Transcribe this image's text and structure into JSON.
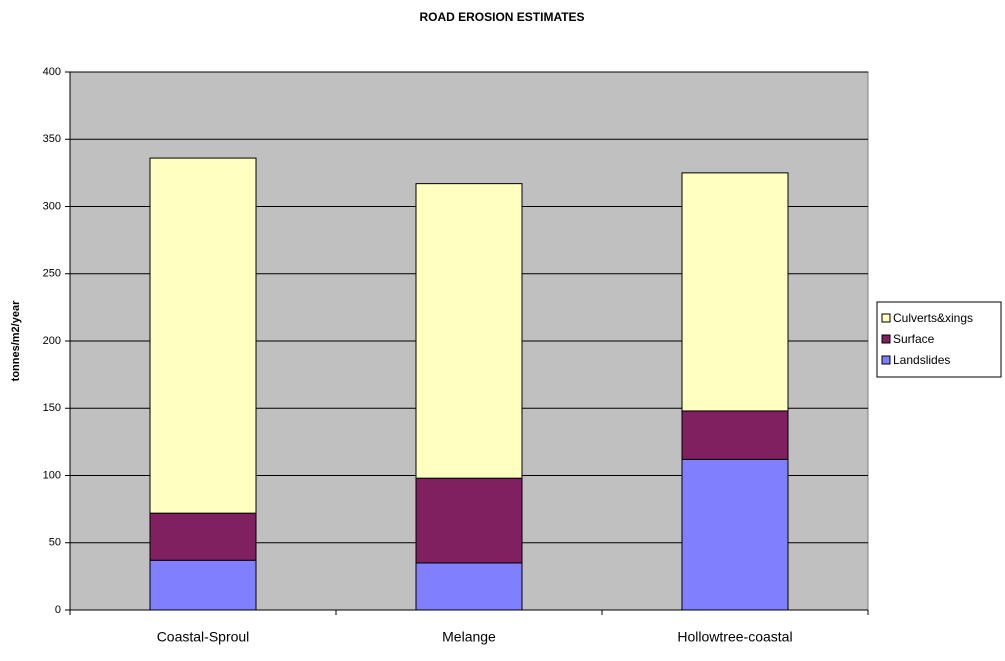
{
  "chart_data": {
    "type": "stacked_bar",
    "title": "ROAD EROSION ESTIMATES",
    "y_label": "tonnes/m2/year",
    "categories": [
      "Coastal-Sproul",
      "Melange",
      "Hollowtree-coastal"
    ],
    "series": [
      {
        "name": "Landslides",
        "color": "#8080ff",
        "values": [
          37,
          35,
          112
        ]
      },
      {
        "name": "Surface",
        "color": "#802060",
        "values": [
          35,
          63,
          36
        ]
      },
      {
        "name": "Culverts&xings",
        "color": "#ffffc0",
        "values": [
          264,
          219,
          177
        ]
      }
    ],
    "ylim": [
      0,
      400
    ],
    "yticks": [
      0,
      50,
      100,
      150,
      200,
      250,
      300,
      350,
      400
    ],
    "grid": true,
    "legend": "right"
  }
}
